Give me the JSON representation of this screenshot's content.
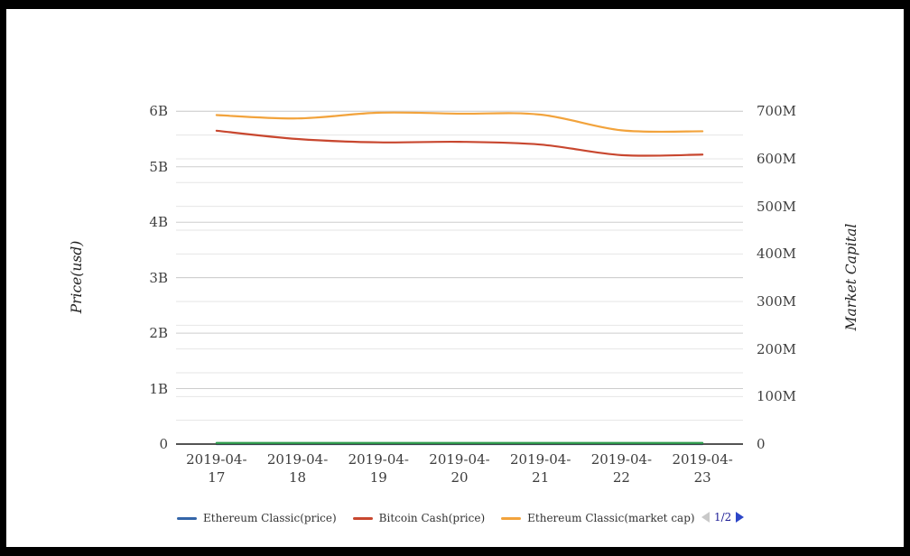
{
  "colors": {
    "background": "#ffffff",
    "frame_border": "#000000",
    "axis_line": "#3c3c3c",
    "gridline_major": "#cdcdcd",
    "gridline_minor": "#e6e6e6",
    "tick_text": "#3f3f3f",
    "pager_text": "#1e1e96",
    "pager_next_arrow": "#2d46c8",
    "pager_prev_arrow": "#c9c9c9"
  },
  "chart_data": {
    "type": "line",
    "smooth": true,
    "grid": "on",
    "legend_position": "bottom",
    "x_categories": [
      "2019-04-17",
      "2019-04-18",
      "2019-04-19",
      "2019-04-20",
      "2019-04-21",
      "2019-04-22",
      "2019-04-23"
    ],
    "left_axis": {
      "title": "Price(usd)",
      "unit": "USD (billions)",
      "min": 0,
      "max": 6,
      "ticks": [
        "0",
        "1B",
        "2B",
        "3B",
        "4B",
        "5B",
        "6B"
      ],
      "grid_step": 1
    },
    "right_axis": {
      "title": "Market Capital",
      "unit": "USD (millions)",
      "min": 0,
      "max": 700,
      "ticks": [
        "0",
        "100M",
        "200M",
        "300M",
        "400M",
        "500M",
        "600M",
        "700M"
      ],
      "grid_step": 50
    },
    "series": [
      {
        "name": "Ethereum Classic(price)",
        "color": "#3465a8",
        "axis": "left",
        "in_legend": true,
        "values": [
          0,
          0,
          0,
          0,
          0,
          0,
          0
        ]
      },
      {
        "name": "Bitcoin Cash(price)",
        "color": "#c8472f",
        "axis": "left",
        "in_legend": true,
        "values": [
          5.65,
          5.5,
          5.44,
          5.45,
          5.4,
          5.21,
          5.22
        ]
      },
      {
        "name": "Ethereum Classic(market cap)",
        "color": "#f2a33c",
        "axis": "right",
        "in_legend": true,
        "values": [
          692,
          685,
          697,
          695,
          693,
          660,
          658
        ]
      },
      {
        "name": "",
        "color": "#2e9e4e",
        "axis": "left",
        "in_legend": false,
        "values": [
          0.02,
          0.02,
          0.02,
          0.02,
          0.02,
          0.02,
          0.02
        ]
      }
    ],
    "legend_pagination": {
      "current": "1/2"
    }
  }
}
